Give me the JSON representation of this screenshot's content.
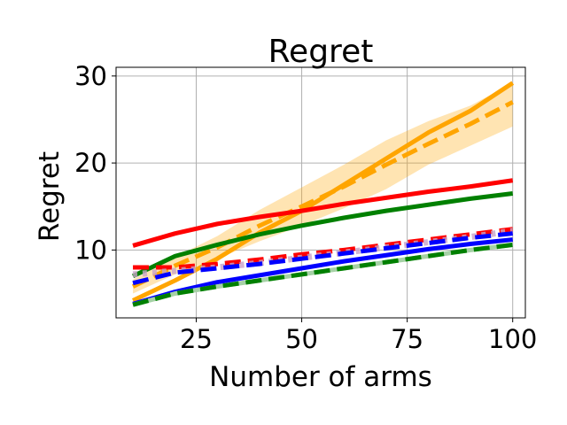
{
  "chart_data": {
    "type": "line",
    "title": "Regret",
    "xlabel": "Number of arms",
    "ylabel": "Regret",
    "xlim": [
      6,
      103
    ],
    "ylim": [
      2.2,
      31
    ],
    "xticks": [
      25,
      50,
      75,
      100
    ],
    "yticks": [
      10,
      20,
      30
    ],
    "grid": true,
    "x": [
      10,
      20,
      30,
      40,
      50,
      60,
      70,
      80,
      90,
      100
    ],
    "series": [
      {
        "color": "#ffa500",
        "style": "solid",
        "values": [
          4.2,
          6.5,
          9.0,
          12.0,
          14.5,
          17.5,
          20.5,
          23.5,
          26.0,
          29.2
        ]
      },
      {
        "color": "#ffa500",
        "style": "dashed",
        "values": [
          5.8,
          8.2,
          10.3,
          12.8,
          15.0,
          17.3,
          19.8,
          22.2,
          24.5,
          27.0
        ],
        "band": [
          [
            5.0,
            6.6
          ],
          [
            7.2,
            9.2
          ],
          [
            9.0,
            11.6
          ],
          [
            11.0,
            14.6
          ],
          [
            12.8,
            17.2
          ],
          [
            14.8,
            19.8
          ],
          [
            17.0,
            22.6
          ],
          [
            19.8,
            24.8
          ],
          [
            22.0,
            26.6
          ],
          [
            24.2,
            29.2
          ]
        ]
      },
      {
        "color": "#ff0000",
        "style": "solid",
        "values": [
          10.5,
          11.9,
          13.0,
          13.8,
          14.5,
          15.3,
          16.0,
          16.7,
          17.3,
          18.0
        ]
      },
      {
        "color": "#008000",
        "style": "solid",
        "values": [
          7.0,
          9.3,
          10.6,
          11.8,
          12.8,
          13.7,
          14.5,
          15.2,
          15.9,
          16.5
        ]
      },
      {
        "color": "#ff0000",
        "style": "dashed",
        "values": [
          8.0,
          8.0,
          8.4,
          8.9,
          9.5,
          10.0,
          10.6,
          11.2,
          11.8,
          12.4
        ]
      },
      {
        "color": "#c8a2c8",
        "style": "dotted",
        "values": [
          7.2,
          7.6,
          8.0,
          8.5,
          9.1,
          9.7,
          10.3,
          10.9,
          11.5,
          12.2
        ]
      },
      {
        "color": "#0000ff",
        "style": "dashed",
        "values": [
          6.2,
          7.4,
          7.9,
          8.4,
          9.0,
          9.6,
          10.2,
          10.8,
          11.4,
          11.9
        ]
      },
      {
        "color": "#0000ff",
        "style": "solid",
        "values": [
          3.8,
          5.2,
          6.3,
          7.1,
          7.9,
          8.7,
          9.4,
          10.1,
          10.7,
          11.2
        ]
      },
      {
        "color": "#a6d1a6",
        "style": "solid",
        "values": [
          3.7,
          5.0,
          5.8,
          6.5,
          7.2,
          7.9,
          8.6,
          9.3,
          10.0,
          10.6
        ]
      },
      {
        "color": "#008000",
        "style": "dashed",
        "values": [
          3.7,
          5.0,
          5.8,
          6.5,
          7.2,
          7.9,
          8.6,
          9.3,
          10.0,
          10.6
        ]
      }
    ]
  }
}
